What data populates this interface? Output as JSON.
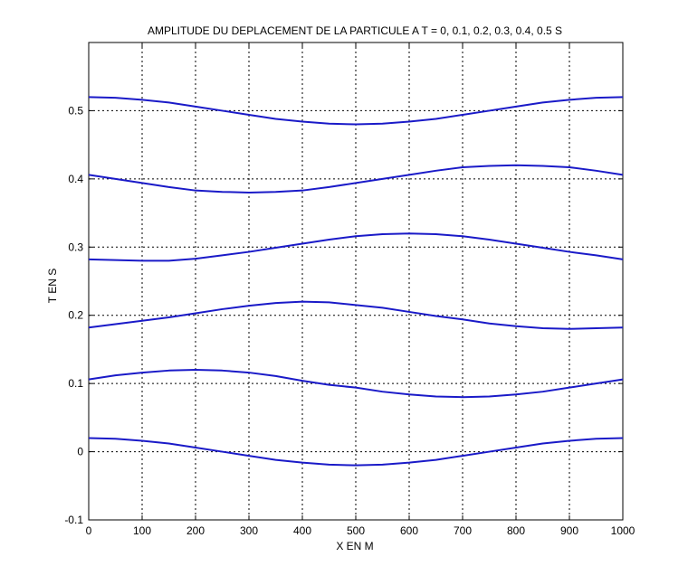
{
  "chart_data": {
    "type": "line",
    "title": "AMPLITUDE DU DEPLACEMENT DE LA PARTICULE A T = 0, 0.1, 0.2, 0.3, 0.4, 0.5 S",
    "xlabel": "X EN M",
    "ylabel": "T EN S",
    "xlim": [
      0,
      1000
    ],
    "ylim": [
      -0.1,
      0.6
    ],
    "xticks": [
      0,
      100,
      200,
      300,
      400,
      500,
      600,
      700,
      800,
      900,
      1000
    ],
    "yticks": [
      -0.1,
      0,
      0.1,
      0.2,
      0.3,
      0.4,
      0.5
    ],
    "grid": true,
    "line_color": "#1a1ac8",
    "series": [
      {
        "offset": 0.0,
        "amplitude": 0.02,
        "x": [
          0,
          50,
          100,
          150,
          200,
          250,
          300,
          350,
          400,
          450,
          500,
          550,
          600,
          650,
          700,
          750,
          800,
          850,
          900,
          950,
          1000
        ],
        "values": [
          0.02,
          0.019,
          0.016,
          0.012,
          0.006,
          0.0,
          -0.006,
          -0.012,
          -0.016,
          -0.019,
          -0.02,
          -0.019,
          -0.016,
          -0.012,
          -0.006,
          0.0,
          0.006,
          0.012,
          0.016,
          0.019,
          0.02
        ]
      },
      {
        "offset": 0.1,
        "amplitude": 0.02,
        "x": [
          0,
          50,
          100,
          150,
          200,
          250,
          300,
          350,
          400,
          450,
          500,
          550,
          600,
          650,
          700,
          750,
          800,
          850,
          900,
          950,
          1000
        ],
        "values": [
          0.106,
          0.112,
          0.116,
          0.119,
          0.12,
          0.119,
          0.116,
          0.111,
          0.104,
          0.098,
          0.094,
          0.088,
          0.084,
          0.081,
          0.08,
          0.081,
          0.084,
          0.088,
          0.094,
          0.1,
          0.106
        ]
      },
      {
        "offset": 0.2,
        "amplitude": 0.02,
        "x": [
          0,
          50,
          100,
          150,
          200,
          250,
          300,
          350,
          400,
          450,
          500,
          550,
          600,
          650,
          700,
          750,
          800,
          850,
          900,
          950,
          1000
        ],
        "values": [
          0.182,
          0.187,
          0.192,
          0.197,
          0.203,
          0.209,
          0.214,
          0.218,
          0.22,
          0.219,
          0.215,
          0.211,
          0.205,
          0.199,
          0.194,
          0.188,
          0.184,
          0.181,
          0.18,
          0.181,
          0.182
        ]
      },
      {
        "offset": 0.3,
        "amplitude": 0.02,
        "x": [
          0,
          50,
          100,
          150,
          200,
          250,
          300,
          350,
          400,
          450,
          500,
          550,
          600,
          650,
          700,
          750,
          800,
          850,
          900,
          950,
          1000
        ],
        "values": [
          0.282,
          0.281,
          0.28,
          0.28,
          0.283,
          0.288,
          0.293,
          0.299,
          0.305,
          0.311,
          0.316,
          0.319,
          0.32,
          0.319,
          0.316,
          0.311,
          0.305,
          0.299,
          0.293,
          0.288,
          0.282
        ]
      },
      {
        "offset": 0.4,
        "amplitude": 0.02,
        "x": [
          0,
          50,
          100,
          150,
          200,
          250,
          300,
          350,
          400,
          450,
          500,
          550,
          600,
          650,
          700,
          750,
          800,
          850,
          900,
          950,
          1000
        ],
        "values": [
          0.406,
          0.4,
          0.394,
          0.388,
          0.383,
          0.381,
          0.38,
          0.381,
          0.383,
          0.388,
          0.394,
          0.4,
          0.406,
          0.412,
          0.417,
          0.419,
          0.42,
          0.419,
          0.417,
          0.412,
          0.406
        ]
      },
      {
        "offset": 0.5,
        "amplitude": 0.02,
        "x": [
          0,
          50,
          100,
          150,
          200,
          250,
          300,
          350,
          400,
          450,
          500,
          550,
          600,
          650,
          700,
          750,
          800,
          850,
          900,
          950,
          1000
        ],
        "values": [
          0.52,
          0.519,
          0.516,
          0.512,
          0.506,
          0.5,
          0.494,
          0.488,
          0.484,
          0.481,
          0.48,
          0.481,
          0.484,
          0.488,
          0.494,
          0.5,
          0.506,
          0.512,
          0.516,
          0.519,
          0.52
        ]
      }
    ]
  }
}
